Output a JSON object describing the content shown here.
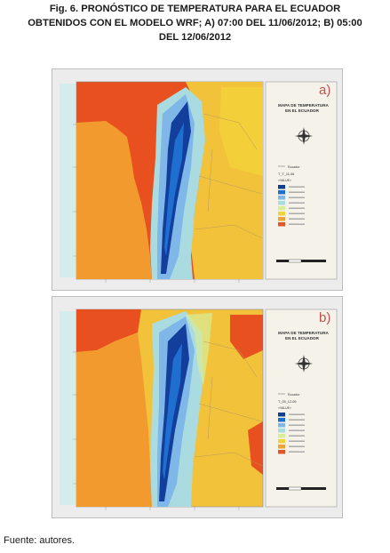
{
  "caption": {
    "line1": "Fig. 6. PRONÓSTICO DE TEMPERATURA PARA EL ECUADOR",
    "line2": "OBTENIDOS CON EL MODELO WRF; A) 07:00 DEL 11/06/2012; B) 05:00",
    "line3": "DEL 12/06/2012"
  },
  "source": "Fuente: autores.",
  "maps": [
    {
      "letter": "a)",
      "title_line1": "MAPA DE TEMPERATURA",
      "title_line2": "EN EL ECUADOR",
      "legend_layer": "T_T_11-06",
      "legend_value": "<VALUE>",
      "legend_boundary": "Ecuador"
    },
    {
      "letter": "b)",
      "title_line1": "MAPA DE TEMPERATURA",
      "title_line2": "EN EL ECUADOR",
      "legend_layer": "T_05_12-06",
      "legend_value": "<VALUE>",
      "legend_boundary": "Ecuador"
    }
  ],
  "legend_colors": [
    "#0b3d91",
    "#1f6fd1",
    "#7fb8e8",
    "#a9dbe0",
    "#d9ec9a",
    "#f2d23a",
    "#f0a23a",
    "#e2542a"
  ],
  "colors": {
    "ocean": "#e8511f",
    "coast": "#f29a2e",
    "andes_cold": "#133e9c",
    "east": "#f2c33a"
  }
}
